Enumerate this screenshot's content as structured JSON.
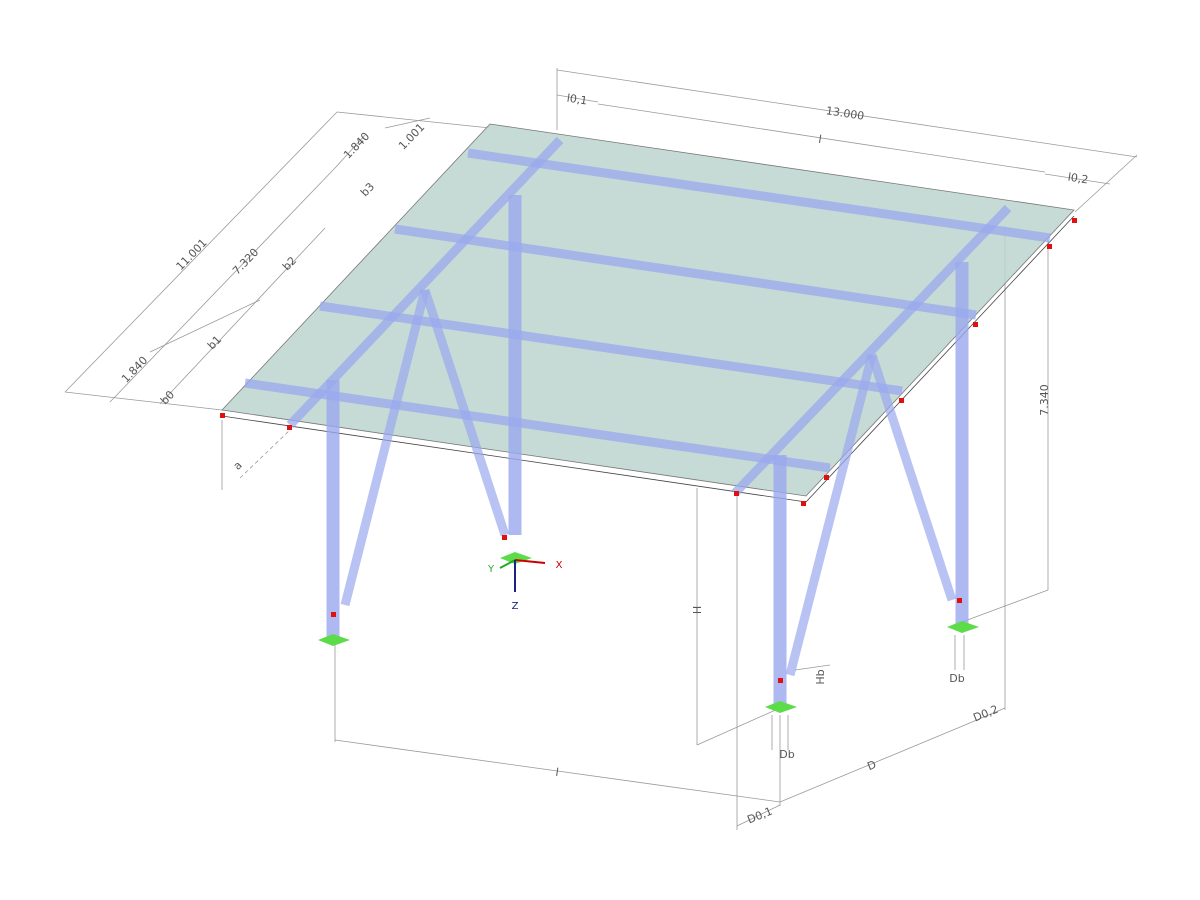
{
  "dimensions": [
    "13.000",
    "l0,1",
    "l",
    "l0,2",
    "11.001",
    "7.320",
    "1.840",
    "1.001",
    "1.840",
    "b3",
    "b2",
    "b1",
    "b0",
    "a",
    "7.340",
    "H",
    "Hb",
    "Db",
    "Db",
    "D0,2",
    "D",
    "l",
    "D0,1"
  ],
  "axes": {
    "x": "X",
    "y": "Y",
    "z": "Z"
  }
}
